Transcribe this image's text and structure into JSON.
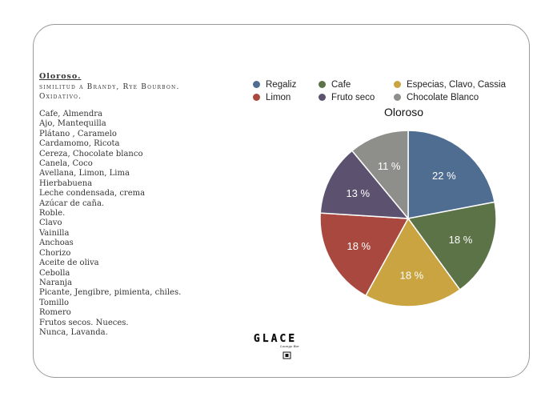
{
  "left_panel": {
    "title": "Oloroso.",
    "subtitle_1": "similitud a Brandy, Rye Bourbon.",
    "subtitle_2": "Oxidativo.",
    "notes": [
      "Cafe, Almendra",
      "Ajo, Mantequilla",
      "Plátano , Caramelo",
      "Cardamomo, Ricota",
      "Cereza, Chocolate blanco",
      "Canela, Coco",
      "Avellana, Limon, Lima",
      "Hierbabuena",
      "Leche condensada, crema",
      "Azúcar de caña.",
      "Roble.",
      "Clavo",
      "Vainilla",
      "Anchoas",
      "Chorizo",
      "Aceite de oliva",
      "Cebolla",
      "Naranja",
      "Picante, Jengibre, pimienta, chiles.",
      "Tomillo",
      "Romero",
      "Frutos secos. Nueces."
    ],
    "final_note": "Nunca, Lavanda."
  },
  "logo": {
    "wordmark": "GLACE",
    "tagline": "Lounge Bar"
  },
  "chart_data": {
    "type": "pie",
    "title": "Oloroso",
    "legend_position": "top",
    "start_angle_deg": 0,
    "direction": "clockwise",
    "slices": [
      {
        "name": "Regaliz",
        "value": 22,
        "label": "22 %",
        "color": "#4f6d91"
      },
      {
        "name": "Cafe",
        "value": 18,
        "label": "18 %",
        "color": "#5b7347"
      },
      {
        "name": "Especias, Clavo, Cassia",
        "value": 18,
        "label": "18 %",
        "color": "#c9a440"
      },
      {
        "name": "Limon",
        "value": 18,
        "label": "18 %",
        "color": "#a9483e"
      },
      {
        "name": "Fruto seco",
        "value": 13,
        "label": "13 %",
        "color": "#5c5270"
      },
      {
        "name": "Chocolate Blanco",
        "value": 11,
        "label": "11 %",
        "color": "#8e8e8a"
      }
    ]
  }
}
